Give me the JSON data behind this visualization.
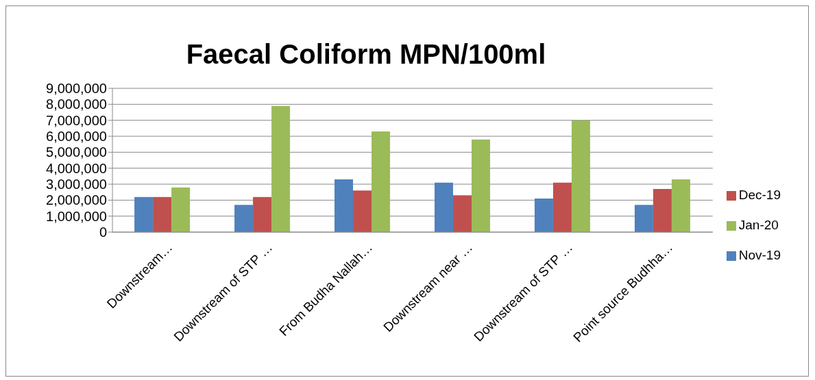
{
  "chart_data": {
    "type": "bar",
    "title": "Faecal Coliform MPN/100ml",
    "categories": [
      "Downstream…",
      "Downstream of STP …",
      "From Budha Nallah…",
      "Downstream near …",
      "Downstream of STP …",
      "Point source Budhha…"
    ],
    "series": [
      {
        "name": "Nov-19",
        "color": "#4f81bd",
        "values": [
          2200000,
          1700000,
          3300000,
          3100000,
          2100000,
          1700000
        ]
      },
      {
        "name": "Dec-19",
        "color": "#c0504d",
        "values": [
          2200000,
          2200000,
          2600000,
          2300000,
          3100000,
          2700000
        ]
      },
      {
        "name": "Jan-20",
        "color": "#9bbb59",
        "values": [
          2800000,
          7900000,
          6300000,
          5800000,
          7000000,
          3300000
        ]
      }
    ],
    "ylim": [
      0,
      9000000
    ],
    "yticks": [
      {
        "value": 0,
        "label": "0"
      },
      {
        "value": 1000000,
        "label": "1,000,000"
      },
      {
        "value": 2000000,
        "label": "2,000,000"
      },
      {
        "value": 3000000,
        "label": "3,000,000"
      },
      {
        "value": 4000000,
        "label": "4,000,000"
      },
      {
        "value": 5000000,
        "label": "5,000,000"
      },
      {
        "value": 6000000,
        "label": "6,000,000"
      },
      {
        "value": 7000000,
        "label": "7,000,000"
      },
      {
        "value": 8000000,
        "label": "8,000,000"
      },
      {
        "value": 9000000,
        "label": "9,000,000"
      }
    ],
    "grid": "y",
    "legend": "right"
  }
}
